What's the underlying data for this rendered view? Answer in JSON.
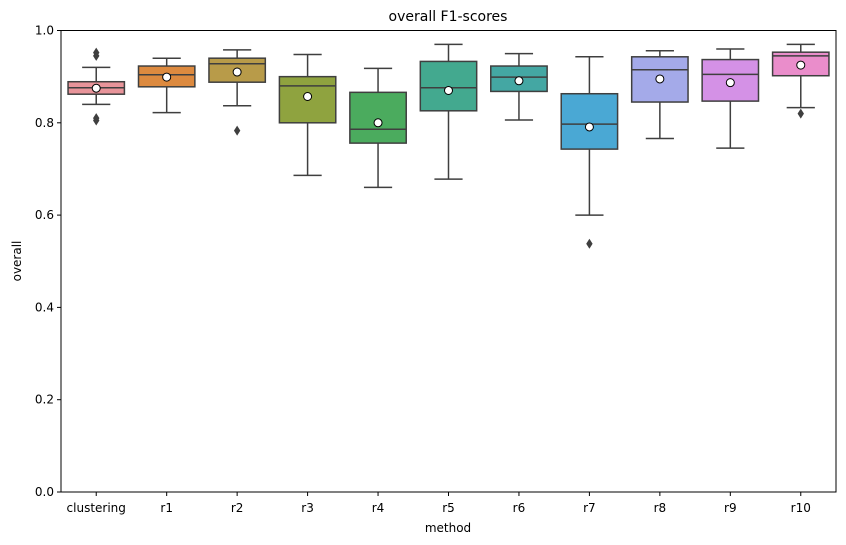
{
  "chart_data": {
    "type": "box",
    "title": "overall F1-scores",
    "xlabel": "method",
    "ylabel": "overall",
    "ylim": [
      0.0,
      1.0
    ],
    "yticks": [
      "0.0",
      "0.2",
      "0.4",
      "0.6",
      "0.8",
      "1.0"
    ],
    "ytick_values": [
      0.0,
      0.2,
      0.4,
      0.6,
      0.8,
      1.0
    ],
    "grid": false,
    "categories": [
      "clustering",
      "r1",
      "r2",
      "r3",
      "r4",
      "r5",
      "r6",
      "r7",
      "r8",
      "r9",
      "r10"
    ],
    "boxes": [
      {
        "category": "clustering",
        "color": "#e8949a",
        "whislo": 0.84,
        "q1": 0.862,
        "med": 0.876,
        "q3": 0.889,
        "whishi": 0.92,
        "mean": 0.875,
        "fliers": [
          0.945,
          0.952,
          0.805,
          0.81
        ]
      },
      {
        "category": "r1",
        "color": "#dd8a3f",
        "whislo": 0.822,
        "q1": 0.878,
        "med": 0.904,
        "q3": 0.923,
        "whishi": 0.94,
        "mean": 0.899,
        "fliers": []
      },
      {
        "category": "r2",
        "color": "#b89b49",
        "whislo": 0.837,
        "q1": 0.888,
        "med": 0.928,
        "q3": 0.94,
        "whishi": 0.958,
        "mean": 0.91,
        "fliers": [
          0.783
        ]
      },
      {
        "category": "r3",
        "color": "#8fa33f",
        "whislo": 0.686,
        "q1": 0.8,
        "med": 0.88,
        "q3": 0.9,
        "whishi": 0.948,
        "mean": 0.857,
        "fliers": []
      },
      {
        "category": "r4",
        "color": "#4bab5e",
        "whislo": 0.66,
        "q1": 0.756,
        "med": 0.786,
        "q3": 0.866,
        "whishi": 0.918,
        "mean": 0.8,
        "fliers": []
      },
      {
        "category": "r5",
        "color": "#43a98f",
        "whislo": 0.678,
        "q1": 0.826,
        "med": 0.876,
        "q3": 0.933,
        "whishi": 0.97,
        "mean": 0.87,
        "fliers": []
      },
      {
        "category": "r6",
        "color": "#44a7a3",
        "whislo": 0.806,
        "q1": 0.868,
        "med": 0.899,
        "q3": 0.923,
        "whishi": 0.95,
        "mean": 0.891,
        "fliers": []
      },
      {
        "category": "r7",
        "color": "#4aa8d4",
        "whislo": 0.6,
        "q1": 0.743,
        "med": 0.797,
        "q3": 0.863,
        "whishi": 0.943,
        "mean": 0.791,
        "fliers": [
          0.538
        ]
      },
      {
        "category": "r8",
        "color": "#a4aae9",
        "whislo": 0.766,
        "q1": 0.845,
        "med": 0.915,
        "q3": 0.943,
        "whishi": 0.956,
        "mean": 0.895,
        "fliers": []
      },
      {
        "category": "r9",
        "color": "#d491e6",
        "whislo": 0.745,
        "q1": 0.847,
        "med": 0.905,
        "q3": 0.937,
        "whishi": 0.96,
        "mean": 0.887,
        "fliers": []
      },
      {
        "category": "r10",
        "color": "#ea8dcb",
        "whislo": 0.833,
        "q1": 0.902,
        "med": 0.945,
        "q3": 0.953,
        "whishi": 0.97,
        "mean": 0.925,
        "fliers": [
          0.82
        ]
      }
    ],
    "line_color": "#3f3f3f"
  }
}
